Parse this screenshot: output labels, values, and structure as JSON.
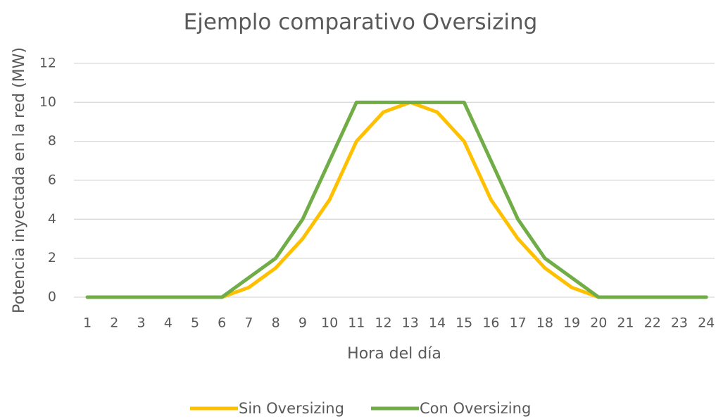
{
  "chart_data": {
    "type": "line",
    "title": "Ejemplo comparativo Oversizing",
    "x_label": "Hora del día",
    "y_label": "Potencia inyectada en la red  (MW)",
    "categories": [
      "1",
      "2",
      "3",
      "4",
      "5",
      "6",
      "7",
      "8",
      "9",
      "10",
      "11",
      "12",
      "13",
      "14",
      "15",
      "16",
      "17",
      "18",
      "19",
      "20",
      "21",
      "22",
      "23",
      "24"
    ],
    "series": [
      {
        "name": "Sin Oversizing",
        "color": "#ffc000",
        "values": [
          0,
          0,
          0,
          0,
          0,
          0,
          0.5,
          1.5,
          3,
          5,
          8,
          9.5,
          10,
          9.5,
          8,
          5,
          3,
          1.5,
          0.5,
          0,
          0,
          0,
          0,
          0
        ]
      },
      {
        "name": "Con Oversizing",
        "color": "#70ad47",
        "values": [
          0,
          0,
          0,
          0,
          0,
          0,
          1,
          2,
          4,
          7,
          10,
          10,
          10,
          10,
          10,
          7,
          4,
          2,
          1,
          0,
          0,
          0,
          0,
          0
        ]
      }
    ],
    "ylim": [
      0,
      12
    ],
    "yticks": [
      0,
      2,
      4,
      6,
      8,
      10,
      12
    ],
    "grid": true,
    "legend": "bottom"
  }
}
